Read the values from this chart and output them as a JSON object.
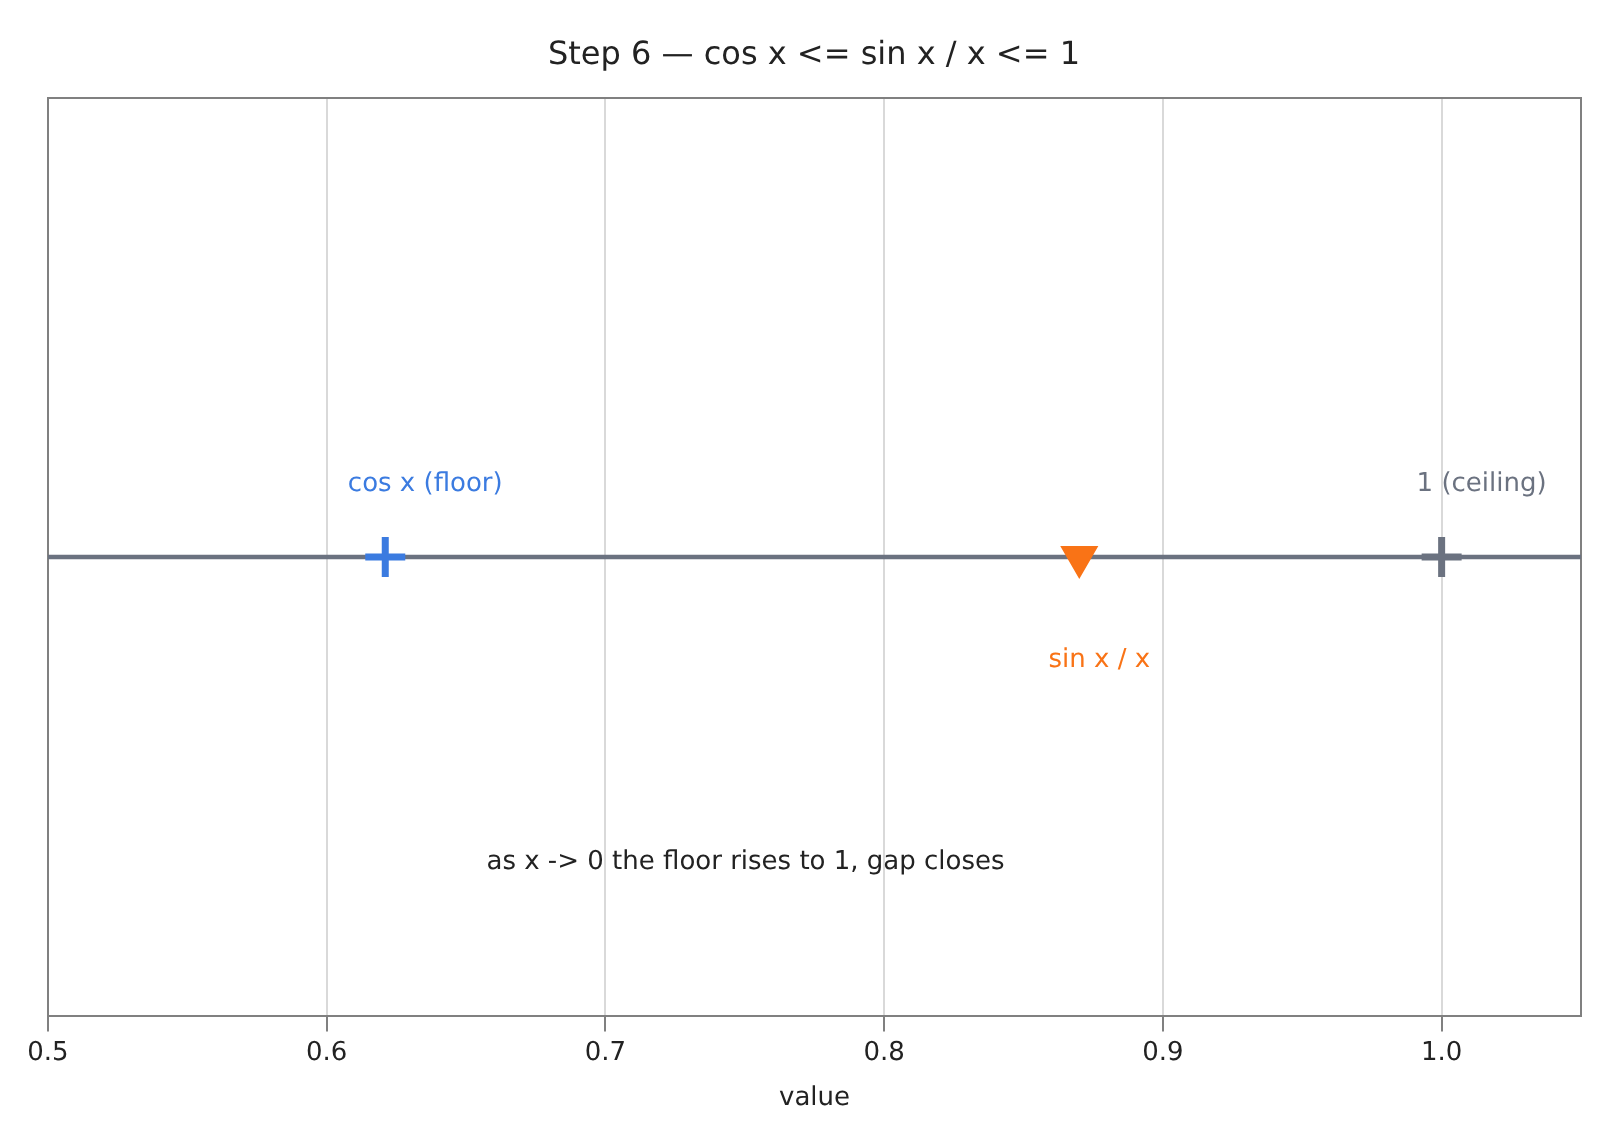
{
  "chart_data": {
    "type": "scatter",
    "orientation": "horizontal",
    "title": "Step 6 — cos x <= sin x / x <= 1",
    "xlabel": "value",
    "categories": [
      null
    ],
    "xlim": [
      0.5,
      1.05
    ],
    "xticks": [
      0.5,
      0.6,
      0.7,
      0.8,
      0.9,
      {
        "value": 1,
        "label": "1.0"
      }
    ],
    "grid": "x",
    "legend": false,
    "series": [
      {
        "type": "bar",
        "color": "#6b7280",
        "base": [
          0.5
        ],
        "values": [
          0.55
        ]
      },
      {
        "name": "cos x (floor)",
        "color": "#3b7be0",
        "values": [
          0.621
        ],
        "marker": "cross"
      },
      {
        "name": "sin x / x",
        "color": "#f97316",
        "values": [
          0.87
        ],
        "marker": "triangle"
      },
      {
        "name": "1 (ceiling)",
        "color": "#6b7280",
        "values": [
          1.0
        ],
        "marker": "cross"
      }
    ],
    "annotations": [
      "as x -> 0 the floor rises to 1, gap closes"
    ]
  }
}
